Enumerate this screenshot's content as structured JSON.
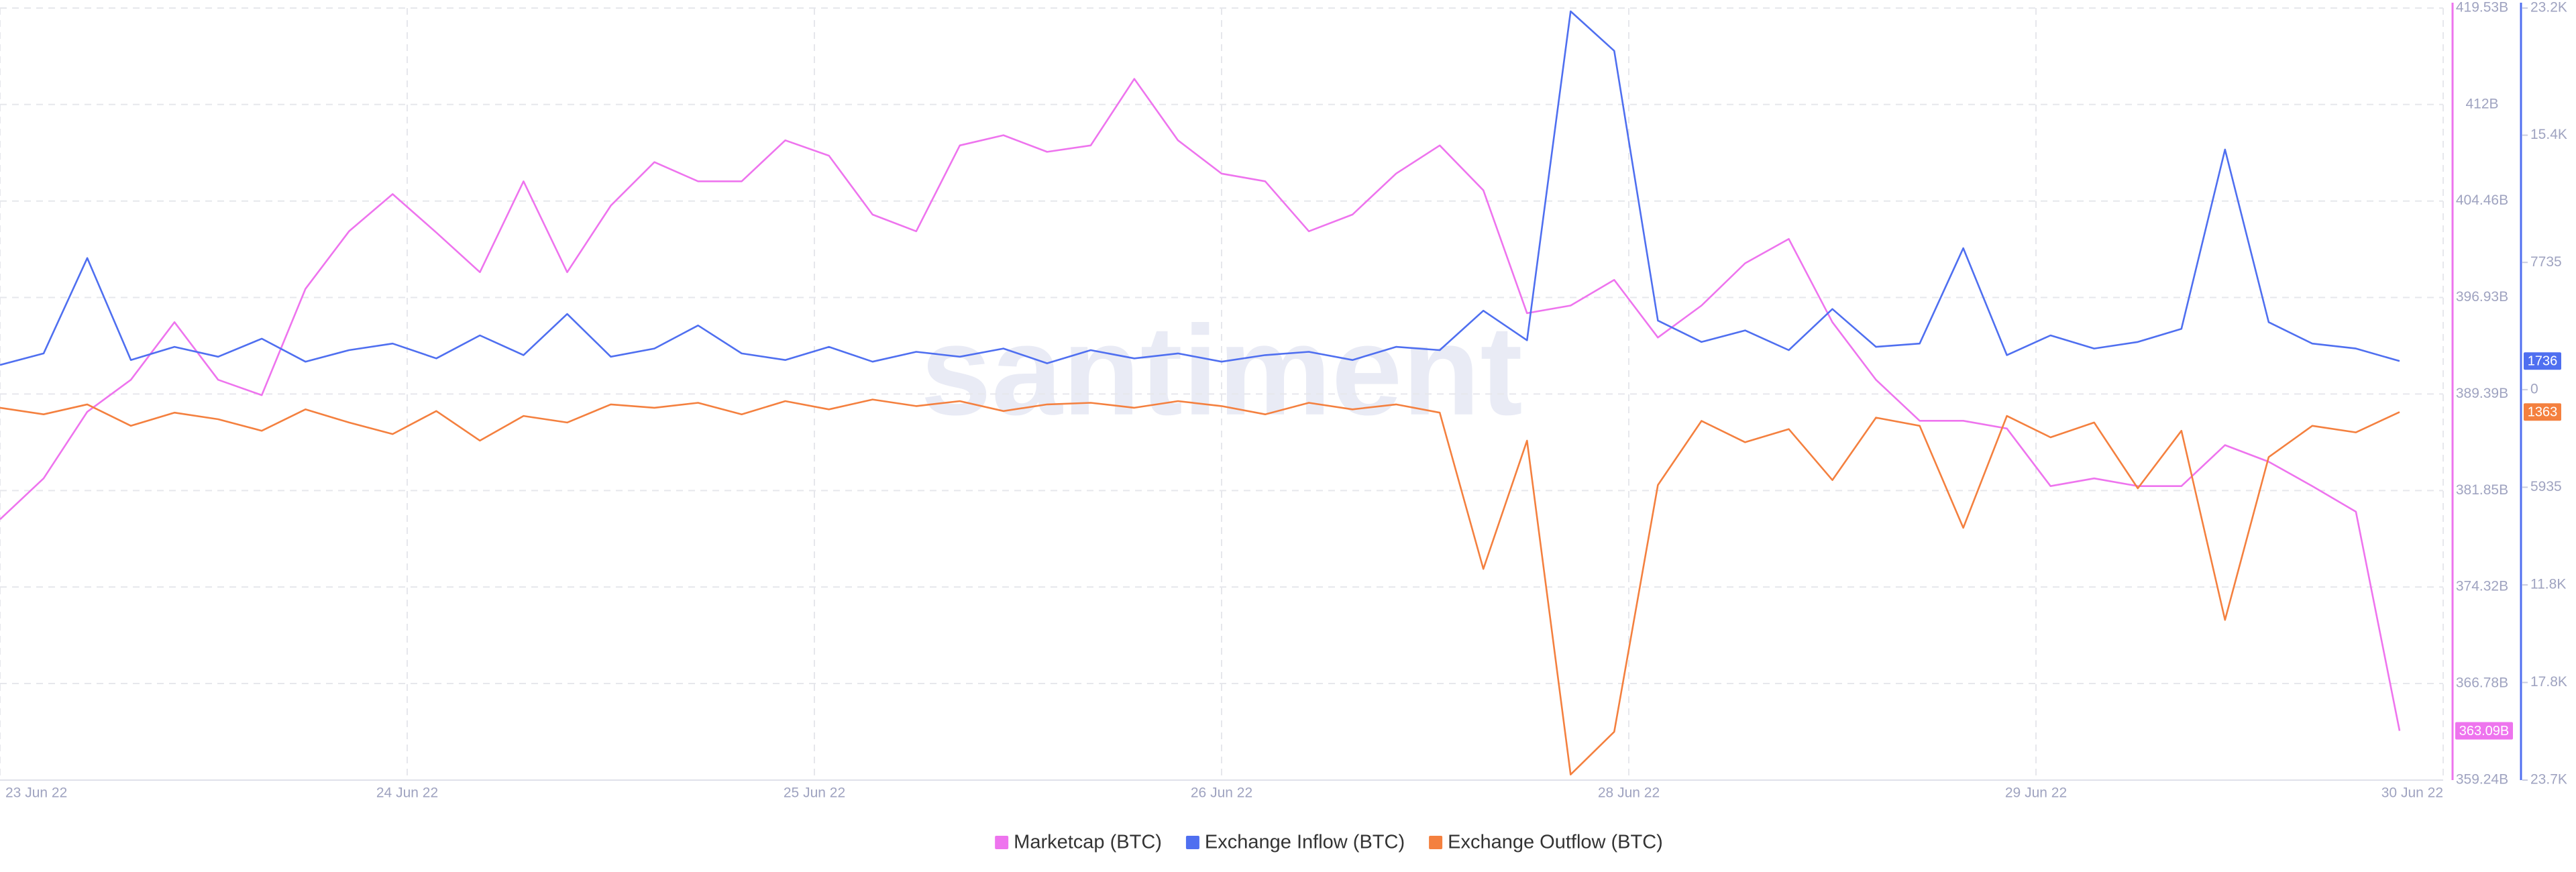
{
  "chart_data": {
    "type": "line",
    "watermark": "santiment",
    "x": [
      0,
      3,
      6,
      9,
      12,
      15,
      18,
      21,
      24,
      27,
      30,
      33,
      36,
      39,
      42,
      45,
      48,
      51,
      54,
      57,
      60,
      63,
      66,
      69,
      72,
      75,
      78,
      81,
      84,
      87,
      90,
      93,
      96,
      99,
      102,
      105,
      108,
      111,
      114,
      117,
      120,
      123,
      126,
      129,
      132,
      135,
      138,
      141,
      144,
      147,
      150,
      153,
      156,
      159,
      162,
      165
    ],
    "xlim": [
      0,
      168
    ],
    "xticks": [
      {
        "value": 0,
        "label": "23 Jun 22"
      },
      {
        "value": 28,
        "label": "24 Jun 22"
      },
      {
        "value": 56,
        "label": "25 Jun 22"
      },
      {
        "value": 84,
        "label": "26 Jun 22"
      },
      {
        "value": 112,
        "label": "28 Jun 22"
      },
      {
        "value": 140,
        "label": "29 Jun 22"
      },
      {
        "value": 168,
        "label": "30 Jun 22"
      }
    ],
    "ylim": [
      359.24,
      419.53
    ],
    "yticks": [
      {
        "value": 359.24,
        "label": "359.24B"
      },
      {
        "value": 366.78,
        "label": "366.78B"
      },
      {
        "value": 374.32,
        "label": "374.32B"
      },
      {
        "value": 381.85,
        "label": "381.85B"
      },
      {
        "value": 389.39,
        "label": "389.39B"
      },
      {
        "value": 396.93,
        "label": "396.93B"
      },
      {
        "value": 404.46,
        "label": "404.46B"
      },
      {
        "value": 412,
        "label": "412B"
      },
      {
        "value": 419.53,
        "label": "419.53B"
      }
    ],
    "y2lim": [
      -23740,
      23200
    ],
    "y2ticks": [
      {
        "value": 23200,
        "label": "23.2K"
      },
      {
        "value": 15470,
        "label": "15.4K"
      },
      7735,
      0,
      {
        "value": -5935,
        "label": "5935"
      },
      {
        "value": -11870,
        "label": "11.8K"
      },
      {
        "value": -17805,
        "label": "17.8K"
      },
      {
        "value": -23740,
        "label": "23.7K"
      }
    ],
    "grid": true,
    "legend": "bottom",
    "series": [
      {
        "name": "Marketcap (BTC)",
        "color": "#ee74ee",
        "axis": "y",
        "last_label": "363.09B",
        "values": [
          379.6,
          382.8,
          388,
          390.5,
          395,
          390.5,
          389.3,
          397.6,
          402.1,
          405,
          402,
          398.9,
          406,
          398.9,
          404.1,
          407.5,
          406,
          406,
          409.2,
          408,
          403.4,
          402.1,
          408.8,
          409.6,
          408.3,
          408.8,
          414,
          409.2,
          406.6,
          406,
          402.1,
          403.4,
          406.6,
          408.8,
          405.3,
          395.7,
          396.3,
          398.3,
          393.8,
          396.3,
          399.6,
          401.5,
          395,
          390.5,
          387.3,
          387.3,
          386.7,
          382.2,
          382.8,
          382.2,
          382.2,
          385.4,
          384.1,
          382.2,
          380.2,
          363.09
        ]
      },
      {
        "name": "Exchange Inflow (BTC)",
        "color": "#4f6ff0",
        "axis": "y2",
        "last_label": "1736",
        "values": [
          1500,
          2200,
          8000,
          1800,
          2600,
          2000,
          3100,
          1700,
          2400,
          2800,
          1900,
          3300,
          2100,
          4600,
          2000,
          2500,
          3900,
          2200,
          1800,
          2600,
          1700,
          2300,
          2000,
          2500,
          1600,
          2400,
          1900,
          2200,
          1700,
          2100,
          2300,
          1800,
          2600,
          2400,
          4800,
          3000,
          23000,
          20600,
          4200,
          2900,
          3600,
          2400,
          4900,
          2600,
          2800,
          8600,
          2100,
          3300,
          2500,
          2900,
          3700,
          14600,
          4100,
          2800,
          2500,
          1736
        ]
      },
      {
        "name": "Exchange Outflow (BTC)",
        "color": "#f4803f",
        "axis": "y2",
        "last_label": "1363",
        "values": [
          -1100,
          -1500,
          -900,
          -2200,
          -1400,
          -1800,
          -2500,
          -1200,
          -2000,
          -2700,
          -1300,
          -3100,
          -1600,
          -2000,
          -900,
          -1100,
          -800,
          -1500,
          -700,
          -1200,
          -600,
          -1000,
          -700,
          -1300,
          -900,
          -800,
          -1100,
          -700,
          -1000,
          -1500,
          -800,
          -1200,
          -900,
          -1400,
          -10900,
          -3100,
          -23400,
          -20800,
          -5800,
          -1900,
          -3200,
          -2400,
          -5500,
          -1700,
          -2200,
          -8400,
          -1600,
          -2900,
          -2000,
          -6000,
          -2500,
          -14000,
          -4100,
          -2200,
          -2600,
          -1363
        ]
      }
    ]
  }
}
